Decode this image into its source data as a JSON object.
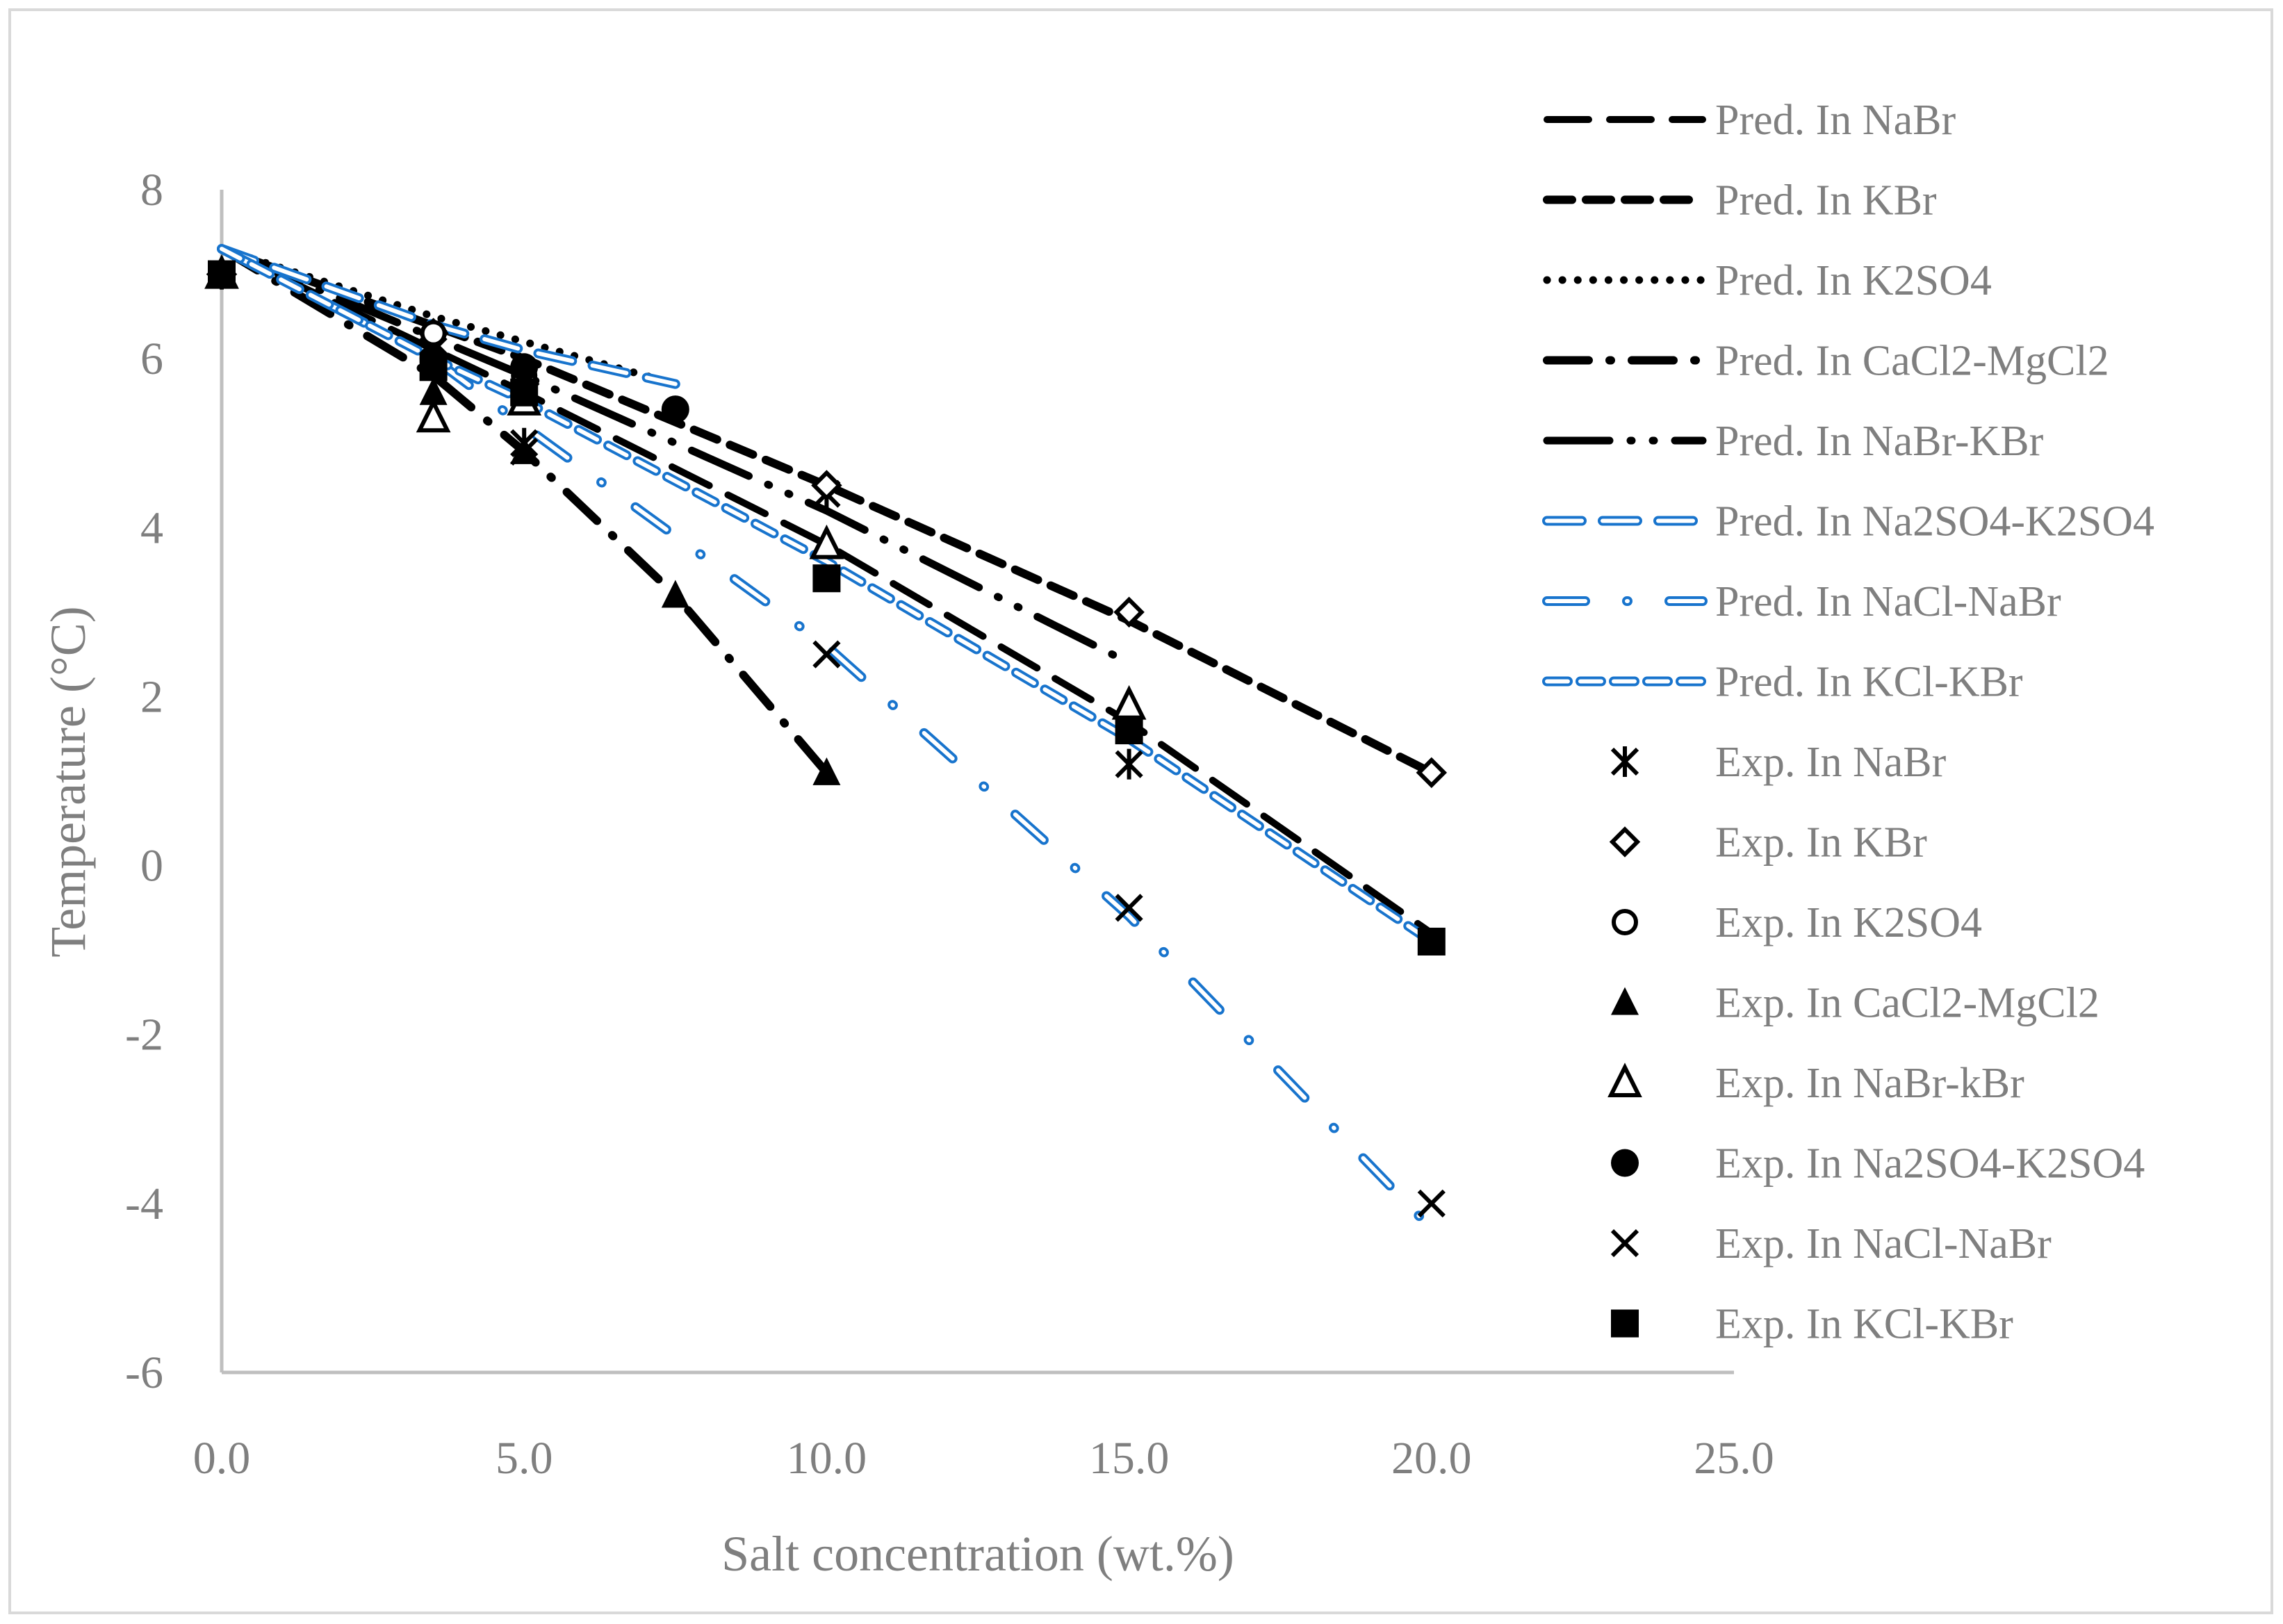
{
  "chart_data": {
    "type": "line",
    "title": "",
    "xlabel": "Salt concentration (wt.%)",
    "ylabel": "Temperature (°C)",
    "xlim": [
      0,
      25
    ],
    "ylim": [
      -6,
      8
    ],
    "xticks": [
      0,
      5,
      10,
      15,
      20,
      25
    ],
    "xtick_labels": [
      "0.0",
      "5.0",
      "10.0",
      "15.0",
      "20.0",
      "25.0"
    ],
    "yticks": [
      8,
      6,
      4,
      2,
      0,
      -2,
      -4,
      -6
    ],
    "ytick_labels": [
      "8",
      "6",
      "4",
      "2",
      "0",
      "-2",
      "-4",
      "-6"
    ],
    "grid": false,
    "legend_position": "right",
    "colors": {
      "black": "#000000",
      "blue": "#1874cd",
      "axis": "#bfbfbf",
      "text": "#7f7f7f"
    },
    "series": [
      {
        "name": "Pred. In NaBr",
        "kind": "line",
        "style": "longdash",
        "color": "#000000",
        "x": [
          0,
          5,
          10,
          15,
          20
        ],
        "y": [
          7.3,
          5.6,
          3.8,
          1.7,
          -0.8
        ]
      },
      {
        "name": "Pred. In KBr",
        "kind": "line",
        "style": "dash",
        "color": "#000000",
        "x": [
          0,
          5,
          10,
          15,
          20
        ],
        "y": [
          7.3,
          6.0,
          4.5,
          2.9,
          1.1
        ]
      },
      {
        "name": "Pred. In K2SO4",
        "kind": "line",
        "style": "dot",
        "color": "#000000",
        "x": [
          0,
          3.5,
          5,
          7.5
        ],
        "y": [
          7.3,
          6.5,
          6.2,
          5.7
        ]
      },
      {
        "name": "Pred. In CaCl2-MgCl2",
        "kind": "line",
        "style": "dashdot",
        "color": "#000000",
        "x": [
          0,
          3.5,
          5,
          7.5,
          10
        ],
        "y": [
          7.3,
          5.8,
          4.9,
          3.2,
          1.1
        ]
      },
      {
        "name": "Pred. In NaBr-KBr",
        "kind": "line",
        "style": "longdashdotdot",
        "color": "#000000",
        "x": [
          0,
          5,
          10,
          15
        ],
        "y": [
          7.3,
          5.8,
          4.2,
          2.4
        ]
      },
      {
        "name": "Pred. In Na2SO4-K2SO4",
        "kind": "line",
        "style": "bluedash",
        "color": "#1874cd",
        "x": [
          0,
          3.5,
          5,
          7.5
        ],
        "y": [
          7.3,
          6.4,
          6.1,
          5.7
        ]
      },
      {
        "name": "Pred. In NaCl-NaBr",
        "kind": "line",
        "style": "bluedashdot",
        "color": "#1874cd",
        "x": [
          0,
          3.5,
          5,
          10,
          15,
          20
        ],
        "y": [
          7.3,
          6.0,
          5.2,
          2.6,
          -0.6,
          -4.3
        ]
      },
      {
        "name": "Pred. In KCl-KBr",
        "kind": "line",
        "style": "bluesmalldash",
        "color": "#1874cd",
        "x": [
          0,
          3.5,
          5,
          10,
          15,
          20
        ],
        "y": [
          7.3,
          6.0,
          5.5,
          3.6,
          1.5,
          -0.9
        ]
      },
      {
        "name": "Exp. In NaBr",
        "kind": "marker",
        "marker": "asterisk",
        "x": [
          0,
          3.5,
          5,
          10,
          15
        ],
        "y": [
          7.0,
          6.2,
          5.0,
          4.4,
          1.2
        ]
      },
      {
        "name": "Exp. In KBr",
        "kind": "marker",
        "marker": "diamond",
        "x": [
          0,
          3.5,
          5,
          10,
          15,
          20
        ],
        "y": [
          7.0,
          6.3,
          5.7,
          4.5,
          3.0,
          1.1
        ]
      },
      {
        "name": "Exp. In K2SO4",
        "kind": "marker",
        "marker": "circle-open",
        "x": [
          0,
          3.5,
          5
        ],
        "y": [
          7.0,
          6.3,
          5.8
        ]
      },
      {
        "name": "Exp. In CaCl2-MgCl2",
        "kind": "marker",
        "marker": "triangle-filled",
        "x": [
          0,
          3.5,
          5,
          7.5,
          10
        ],
        "y": [
          7.0,
          5.6,
          4.9,
          3.2,
          1.1
        ]
      },
      {
        "name": "Exp. In NaBr-kBr",
        "kind": "marker",
        "marker": "triangle-open",
        "x": [
          0,
          3.5,
          5,
          10,
          15
        ],
        "y": [
          7.0,
          5.3,
          5.5,
          3.8,
          1.9
        ]
      },
      {
        "name": "Exp. In Na2SO4-K2SO4",
        "kind": "marker",
        "marker": "circle-filled",
        "x": [
          0,
          3.5,
          5,
          7.5
        ],
        "y": [
          7.0,
          6.0,
          5.9,
          5.4
        ]
      },
      {
        "name": "Exp. In NaCl-NaBr",
        "kind": "marker",
        "marker": "x",
        "x": [
          0,
          3.5,
          5,
          10,
          15,
          20
        ],
        "y": [
          7.0,
          6.1,
          4.9,
          2.5,
          -0.5,
          -4.0
        ]
      },
      {
        "name": "Exp. In KCl-KBr",
        "kind": "marker",
        "marker": "square",
        "x": [
          0,
          3.5,
          5,
          10,
          15,
          20
        ],
        "y": [
          7.0,
          5.9,
          5.6,
          3.4,
          1.6,
          -0.9
        ]
      }
    ]
  }
}
